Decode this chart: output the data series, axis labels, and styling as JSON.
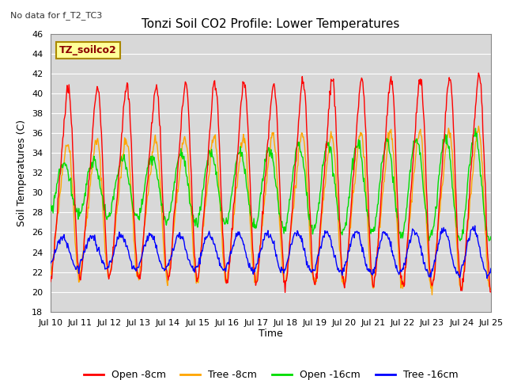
{
  "title": "Tonzi Soil CO2 Profile: Lower Temperatures",
  "note": "No data for f_T2_TC3",
  "ylabel": "Soil Temperatures (C)",
  "xlabel": "Time",
  "ylim": [
    18,
    46
  ],
  "yticks": [
    18,
    20,
    22,
    24,
    26,
    28,
    30,
    32,
    34,
    36,
    38,
    40,
    42,
    44,
    46
  ],
  "xtick_labels": [
    "Jul 10",
    "Jul 11",
    "Jul 12",
    "Jul 13",
    "Jul 14",
    "Jul 15",
    "Jul 16",
    "Jul 17",
    "Jul 18",
    "Jul 19",
    "Jul 20",
    "Jul 21",
    "Jul 22",
    "Jul 23",
    "Jul 24",
    "Jul 25"
  ],
  "colors": {
    "open_8cm": "#ff0000",
    "tree_8cm": "#ffa500",
    "open_16cm": "#00dd00",
    "tree_16cm": "#0000ff"
  },
  "legend_labels": [
    "Open -8cm",
    "Tree -8cm",
    "Open -16cm",
    "Tree -16cm"
  ],
  "box_label": "TZ_soilco2",
  "box_color": "#ffff99",
  "box_edge_color": "#aa8800",
  "fig_bg_color": "#ffffff",
  "plot_bg_color": "#d8d8d8",
  "grid_color": "#ffffff",
  "n_days": 15,
  "points_per_day": 48
}
